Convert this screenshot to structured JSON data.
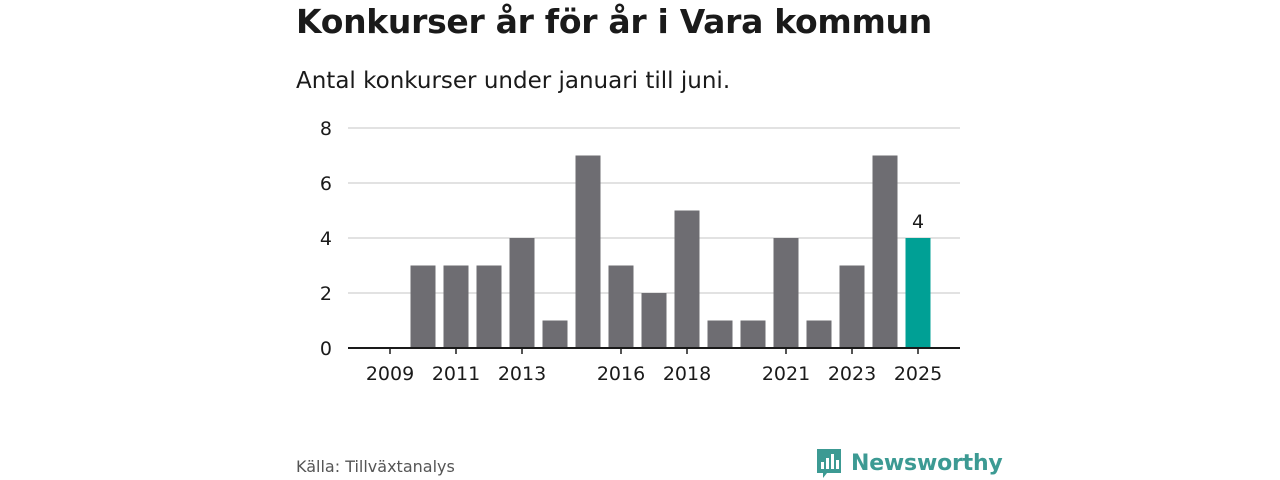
{
  "header": {
    "title": "Konkurser år för år i Vara kommun",
    "subtitle": "Antal konkurser under januari till juni."
  },
  "footer": {
    "source": "Källa: Tillväxtanalys",
    "brand": "Newsworthy",
    "brand_icon": "bar-chart-speech-bubble-icon"
  },
  "colors": {
    "bar": "#6e6d72",
    "highlight": "#00a095",
    "grid": "#d9d9d9",
    "axis": "#1a1a1a",
    "brand": "#3c9a93"
  },
  "chart_data": {
    "type": "bar",
    "title": "Konkurser år för år i Vara kommun",
    "subtitle": "Antal konkurser under januari till juni.",
    "categories": [
      "2009",
      "2010",
      "2011",
      "2012",
      "2013",
      "2014",
      "2015",
      "2016",
      "2017",
      "2018",
      "2019",
      "2020",
      "2021",
      "2022",
      "2023",
      "2024",
      "2025"
    ],
    "values": [
      0,
      3,
      3,
      3,
      4,
      1,
      7,
      3,
      2,
      5,
      1,
      1,
      4,
      1,
      3,
      7,
      4
    ],
    "xtick_labels": [
      "2009",
      "2011",
      "2013",
      "2016",
      "2018",
      "2021",
      "2023",
      "2025"
    ],
    "yticks": [
      0,
      2,
      4,
      6,
      8
    ],
    "ylim": [
      0,
      8
    ],
    "grid": true,
    "highlight": {
      "category": "2025",
      "label": "4"
    },
    "xlabel": "",
    "ylabel": ""
  }
}
